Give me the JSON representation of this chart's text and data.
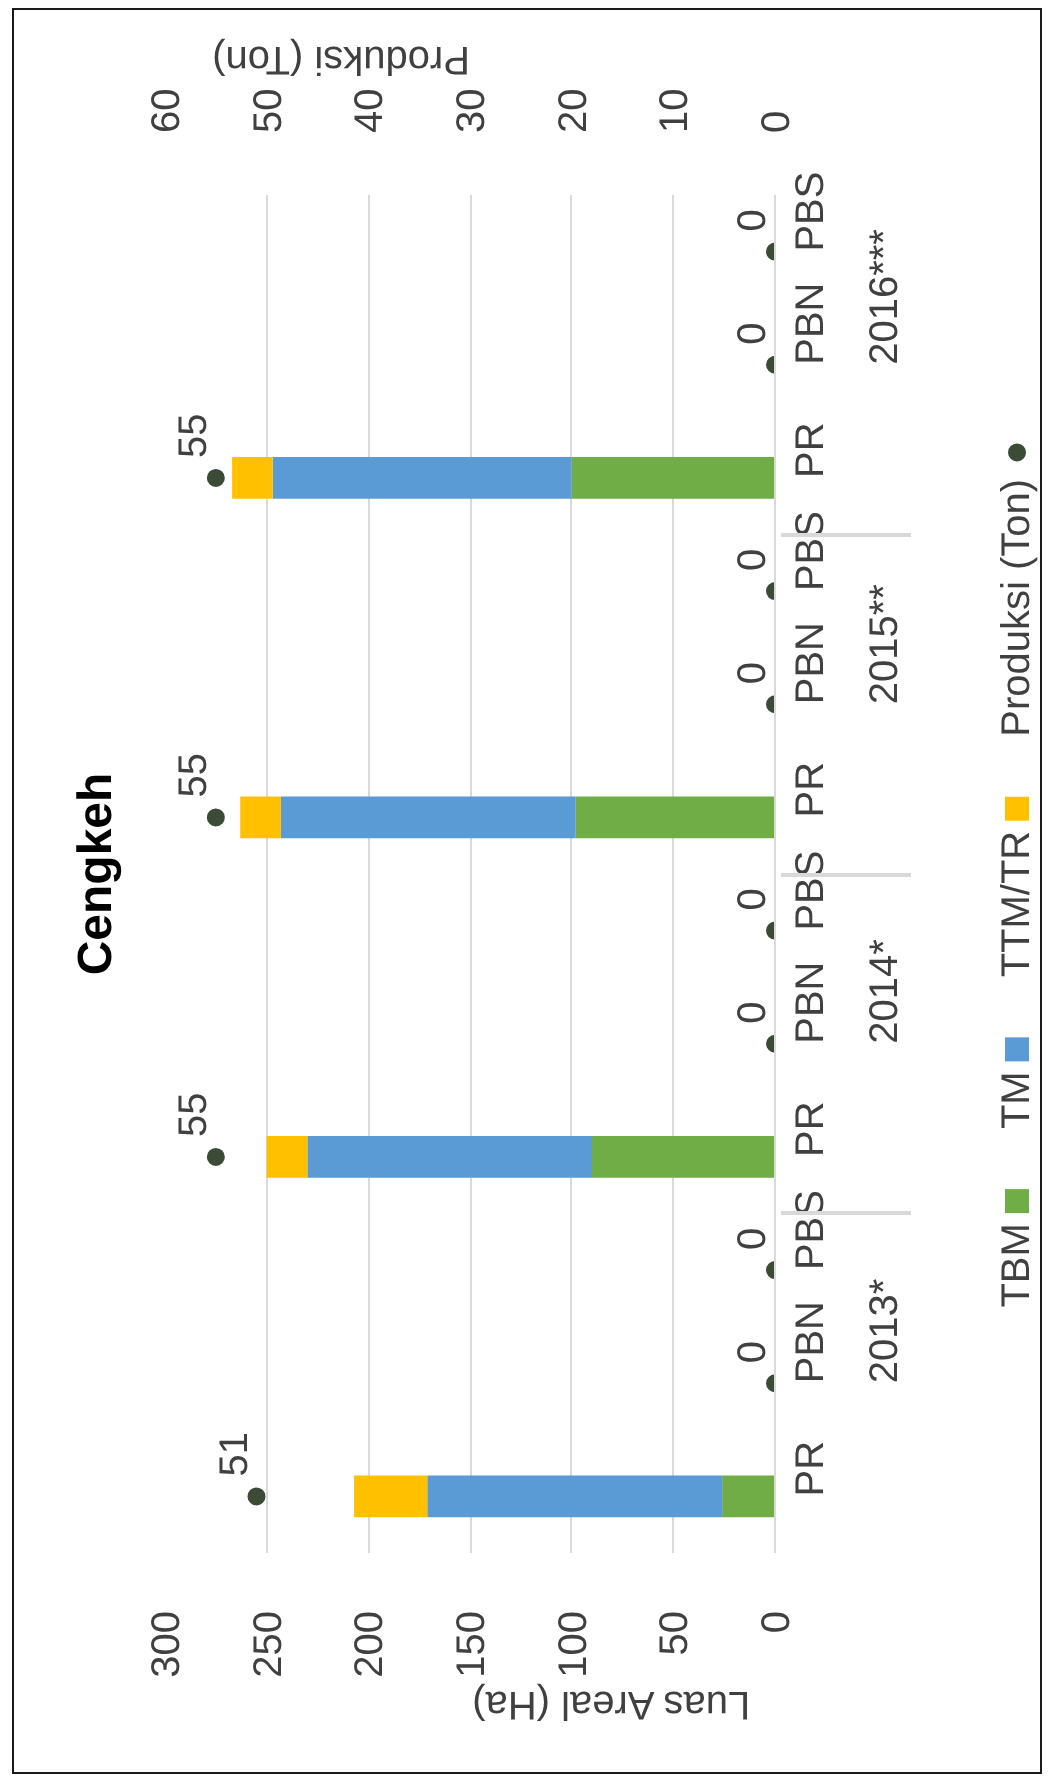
{
  "chart_data": {
    "type": "bar",
    "orientation": "horizontal",
    "stacked": true,
    "title": "Cengkeh",
    "xlabel": "Luas Areal (Ha)",
    "x2label": "Produksi (Ton)",
    "categories": [
      "PBS",
      "PBN",
      "PR",
      "PBS",
      "PBN",
      "PR",
      "PBS",
      "PBN",
      "PR",
      "PBS",
      "PBN",
      "PR"
    ],
    "annotations": [
      "2016***",
      "2015**",
      "2014*",
      "2013*"
    ],
    "series": [
      {
        "name": "TBM",
        "color": "#70ad47",
        "values": [
          null,
          null,
          100,
          null,
          null,
          98,
          null,
          null,
          90,
          null,
          null,
          26
        ]
      },
      {
        "name": "TM",
        "color": "#5b9bd5",
        "values": [
          null,
          null,
          147,
          null,
          null,
          145,
          null,
          null,
          140,
          null,
          null,
          145
        ]
      },
      {
        "name": "TTM/TR",
        "color": "#ffc000",
        "values": [
          null,
          null,
          20,
          null,
          null,
          20,
          null,
          null,
          20,
          null,
          null,
          36
        ]
      },
      {
        "name": "Produksi (Ton)",
        "type": "scatter",
        "axis": "x2",
        "color": "#3c4a38",
        "values": [
          0,
          0,
          55,
          0,
          0,
          55,
          0,
          0,
          55,
          0,
          0,
          51
        ],
        "value_labels": [
          "0",
          "0",
          "55",
          "0",
          "0",
          "55",
          "0",
          "0",
          "55",
          "0",
          "0",
          "51"
        ]
      }
    ],
    "xlim": [
      300,
      0
    ],
    "xticks": [
      0,
      50,
      100,
      150,
      200,
      250,
      300
    ],
    "x2lim": [
      60,
      0
    ],
    "x2ticks": [
      0,
      10,
      20,
      30,
      40,
      50,
      60
    ],
    "grid": "x",
    "legend": "right",
    "marker": "circle"
  }
}
